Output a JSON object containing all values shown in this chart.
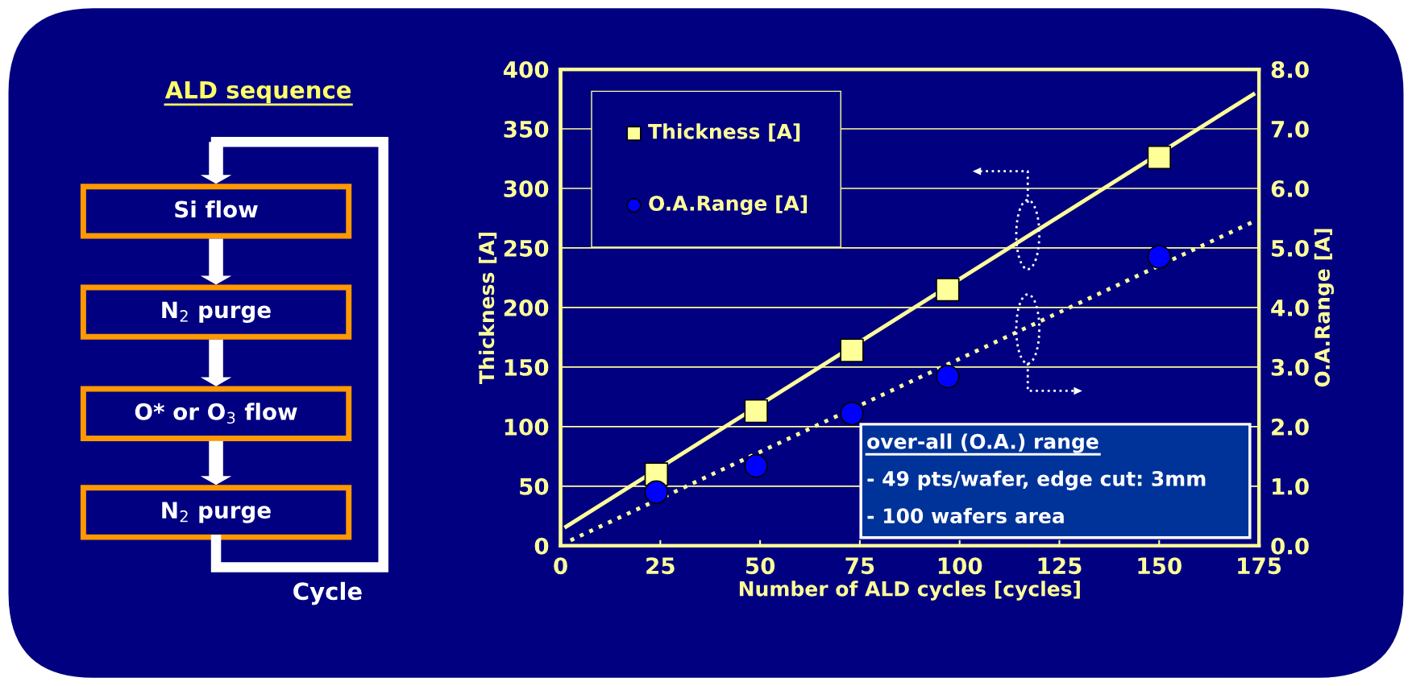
{
  "chart_data": [
    {
      "type": "other",
      "title": "ALD sequence",
      "annotations": [
        "Si flow",
        "N$_{2}$ purge",
        "O* or O$_{3}$ flow",
        "N$_{2}$ purge",
        "Cycle"
      ]
    },
    {
      "type": "scatter",
      "xlabel": "Number of ALD cycles [cycles]",
      "ylabel": "Thickness [A]",
      "y2label": "O.A.Range [A]",
      "xlim": [
        0,
        175
      ],
      "xticks": [
        0,
        25,
        50,
        75,
        100,
        125,
        150,
        175
      ],
      "ylim": [
        0,
        400
      ],
      "yticks": [
        0,
        50,
        100,
        150,
        200,
        250,
        300,
        350,
        400
      ],
      "y2lim": [
        0,
        8
      ],
      "y2ticks": [
        {
          "value": 0,
          "label": "0.0"
        },
        {
          "value": 1,
          "label": "1.0"
        },
        {
          "value": 2,
          "label": "2.0"
        },
        {
          "value": 3,
          "label": "3.0"
        },
        {
          "value": 4,
          "label": "4.0"
        },
        {
          "value": 5,
          "label": "5.0"
        },
        {
          "value": 6,
          "label": "6.0"
        },
        {
          "value": 7,
          "label": "7.0"
        },
        {
          "value": 8,
          "label": "8.0"
        }
      ],
      "grid": "y",
      "legend": "top left",
      "series": [
        {
          "name": "Thickness [A]",
          "type": "scatter",
          "marker": "square",
          "color": "#ffff99",
          "x": [
            24,
            49,
            73,
            97,
            150
          ],
          "values": [
            60,
            113,
            164,
            215,
            326
          ]
        },
        {
          "name": "O.A.Range [A]",
          "type": "scatter",
          "marker": "circle",
          "color": "#0000ff",
          "axis": "y2",
          "x": [
            24,
            49,
            73,
            97,
            150
          ],
          "values": [
            0.9,
            1.34,
            2.22,
            2.84,
            4.85
          ]
        },
        {
          "type": "line",
          "line_style": "solid",
          "color": "#ffff99",
          "x": [
            1.4,
            173.6
          ],
          "values": [
            16,
            379
          ]
        },
        {
          "type": "line",
          "line_style": "dotted",
          "color": "#ffff99",
          "axis": "y2",
          "x": [
            2.5,
            173.6
          ],
          "values": [
            0.09,
            5.44
          ]
        }
      ],
      "annotations": [
        "over-all (O.A.) range",
        "- 49 pts/wafer, edge cut: 3mm",
        "- 100 wafers area"
      ]
    }
  ]
}
